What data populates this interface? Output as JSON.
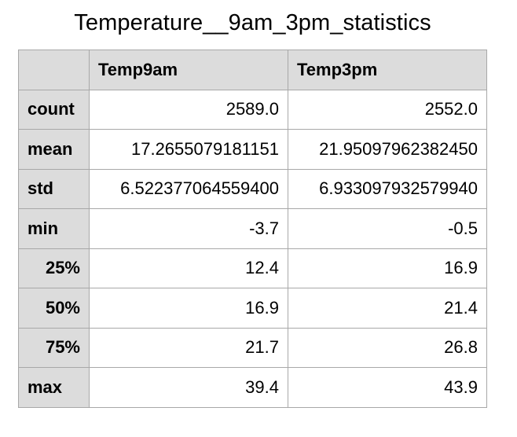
{
  "chart_data": {
    "type": "table",
    "title": "Temperature__9am_3pm_statistics",
    "columns": [
      "Temp9am",
      "Temp3pm"
    ],
    "rows": [
      {
        "label": "count",
        "align": "left",
        "values": [
          "2589.0",
          "2552.0"
        ]
      },
      {
        "label": "mean",
        "align": "left",
        "values": [
          "17.2655079181151",
          "21.95097962382450"
        ]
      },
      {
        "label": "std",
        "align": "left",
        "values": [
          "6.522377064559400",
          "6.933097932579940"
        ]
      },
      {
        "label": "min",
        "align": "left",
        "values": [
          "-3.7",
          "-0.5"
        ]
      },
      {
        "label": "25%",
        "align": "right",
        "values": [
          "12.4",
          "16.9"
        ]
      },
      {
        "label": "50%",
        "align": "right",
        "values": [
          "16.9",
          "21.4"
        ]
      },
      {
        "label": "75%",
        "align": "right",
        "values": [
          "21.7",
          "26.8"
        ]
      },
      {
        "label": "max",
        "align": "left",
        "values": [
          "39.4",
          "43.9"
        ]
      }
    ]
  },
  "colors": {
    "header_bg": "#dcdcdc",
    "border": "#a8a8a8",
    "cell_bg": "#ffffff"
  }
}
